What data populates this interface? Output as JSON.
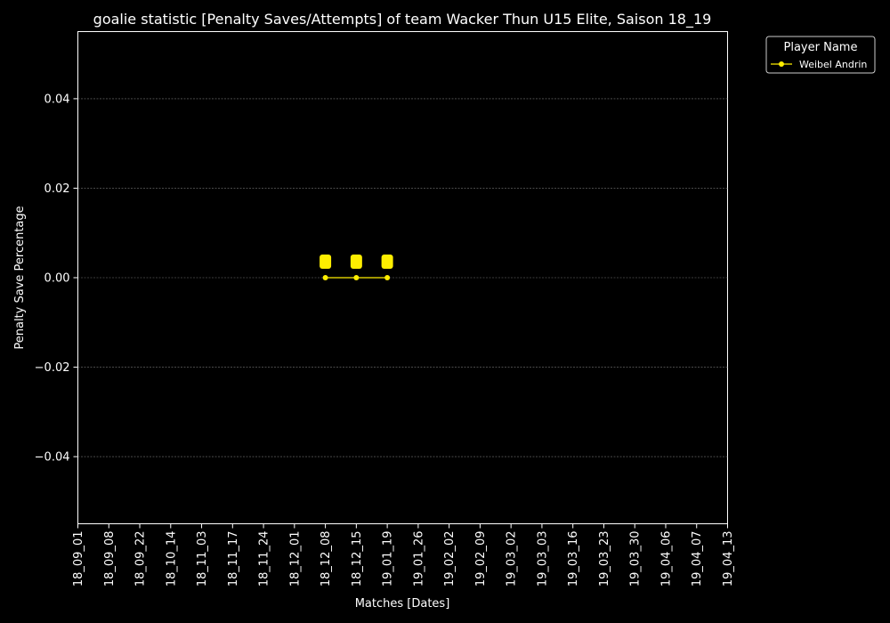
{
  "chart_data": {
    "type": "line",
    "title": "goalie statistic [Penalty Saves/Attempts] of team Wacker Thun U15 Elite, Saison 18_19",
    "xlabel": "Matches [Dates]",
    "ylabel": "Penalty Save Percentage",
    "categories": [
      "18_09_01",
      "18_09_08",
      "18_09_22",
      "18_10_14",
      "18_11_03",
      "18_11_17",
      "18_11_24",
      "18_12_01",
      "18_12_08",
      "18_12_15",
      "19_01_19",
      "19_01_26",
      "19_02_02",
      "19_02_09",
      "19_03_02",
      "19_03_03",
      "19_03_16",
      "19_03_23",
      "19_03_30",
      "19_04_06",
      "19_04_07",
      "19_04_13"
    ],
    "ylim": [
      -0.055,
      0.055
    ],
    "yticks": [
      -0.04,
      -0.02,
      0.0,
      0.02,
      0.04
    ],
    "ytick_labels": [
      "−0.04",
      "−0.02",
      "0.00",
      "0.02",
      "0.04"
    ],
    "grid": true,
    "legend_title": "Player Name",
    "legend_position": "upper-right-outside",
    "series": [
      {
        "name": "Weibel Andrin",
        "color": "#ffee00",
        "points": [
          {
            "x": "18_12_08",
            "y": 0,
            "label": "0"
          },
          {
            "x": "18_12_15",
            "y": 0,
            "label": "0"
          },
          {
            "x": "19_01_19",
            "y": 0,
            "label": "0"
          }
        ]
      }
    ]
  }
}
